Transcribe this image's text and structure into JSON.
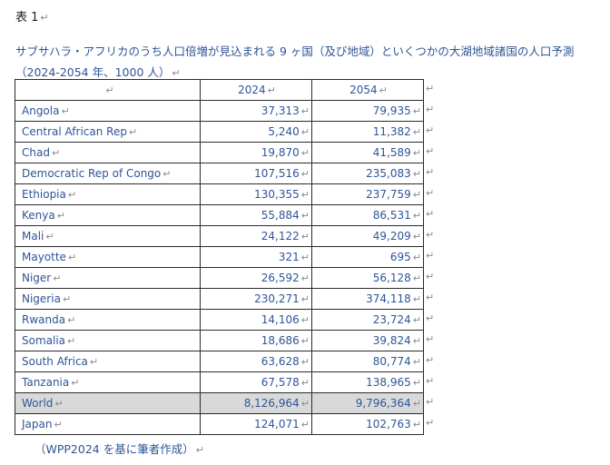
{
  "label": "表 1",
  "caption": "サブサハラ・アフリカのうち人口倍増が見込まれる 9 ヶ国（及び地域）といくつかの大湖地域諸国の人口予測（2024-2054 年、1000 人）",
  "marks": {
    "para": "↵",
    "cell": "↵"
  },
  "table": {
    "headers": [
      "",
      "2024",
      "2054"
    ],
    "rows": [
      {
        "name": "Angola",
        "y2024": "37,313",
        "y2054": "79,935"
      },
      {
        "name": "Central African Rep",
        "y2024": "5,240",
        "y2054": "11,382"
      },
      {
        "name": "Chad",
        "y2024": "19,870",
        "y2054": "41,589"
      },
      {
        "name": "Democratic Rep of Congo",
        "y2024": "107,516",
        "y2054": "235,083"
      },
      {
        "name": "Ethiopia",
        "y2024": "130,355",
        "y2054": "237,759"
      },
      {
        "name": "Kenya",
        "y2024": "55,884",
        "y2054": "86,531"
      },
      {
        "name": "Mali",
        "y2024": "24,122",
        "y2054": "49,209"
      },
      {
        "name": "Mayotte",
        "y2024": "321",
        "y2054": "695"
      },
      {
        "name": "Niger",
        "y2024": "26,592",
        "y2054": "56,128"
      },
      {
        "name": "Nigeria",
        "y2024": "230,271",
        "y2054": "374,118"
      },
      {
        "name": "Rwanda",
        "y2024": "14,106",
        "y2054": "23,724"
      },
      {
        "name": "Somalia",
        "y2024": "18,686",
        "y2054": "39,824"
      },
      {
        "name": "South Africa",
        "y2024": "63,628",
        "y2054": "80,774"
      },
      {
        "name": "Tanzania",
        "y2024": "67,578",
        "y2054": "138,965"
      },
      {
        "name": "World",
        "y2024": "8,126,964",
        "y2054": "9,796,364",
        "highlight": true
      },
      {
        "name": "Japan",
        "y2024": "124,071",
        "y2054": "102,763"
      }
    ]
  },
  "source": "（WPP2024 を基に筆者作成）"
}
